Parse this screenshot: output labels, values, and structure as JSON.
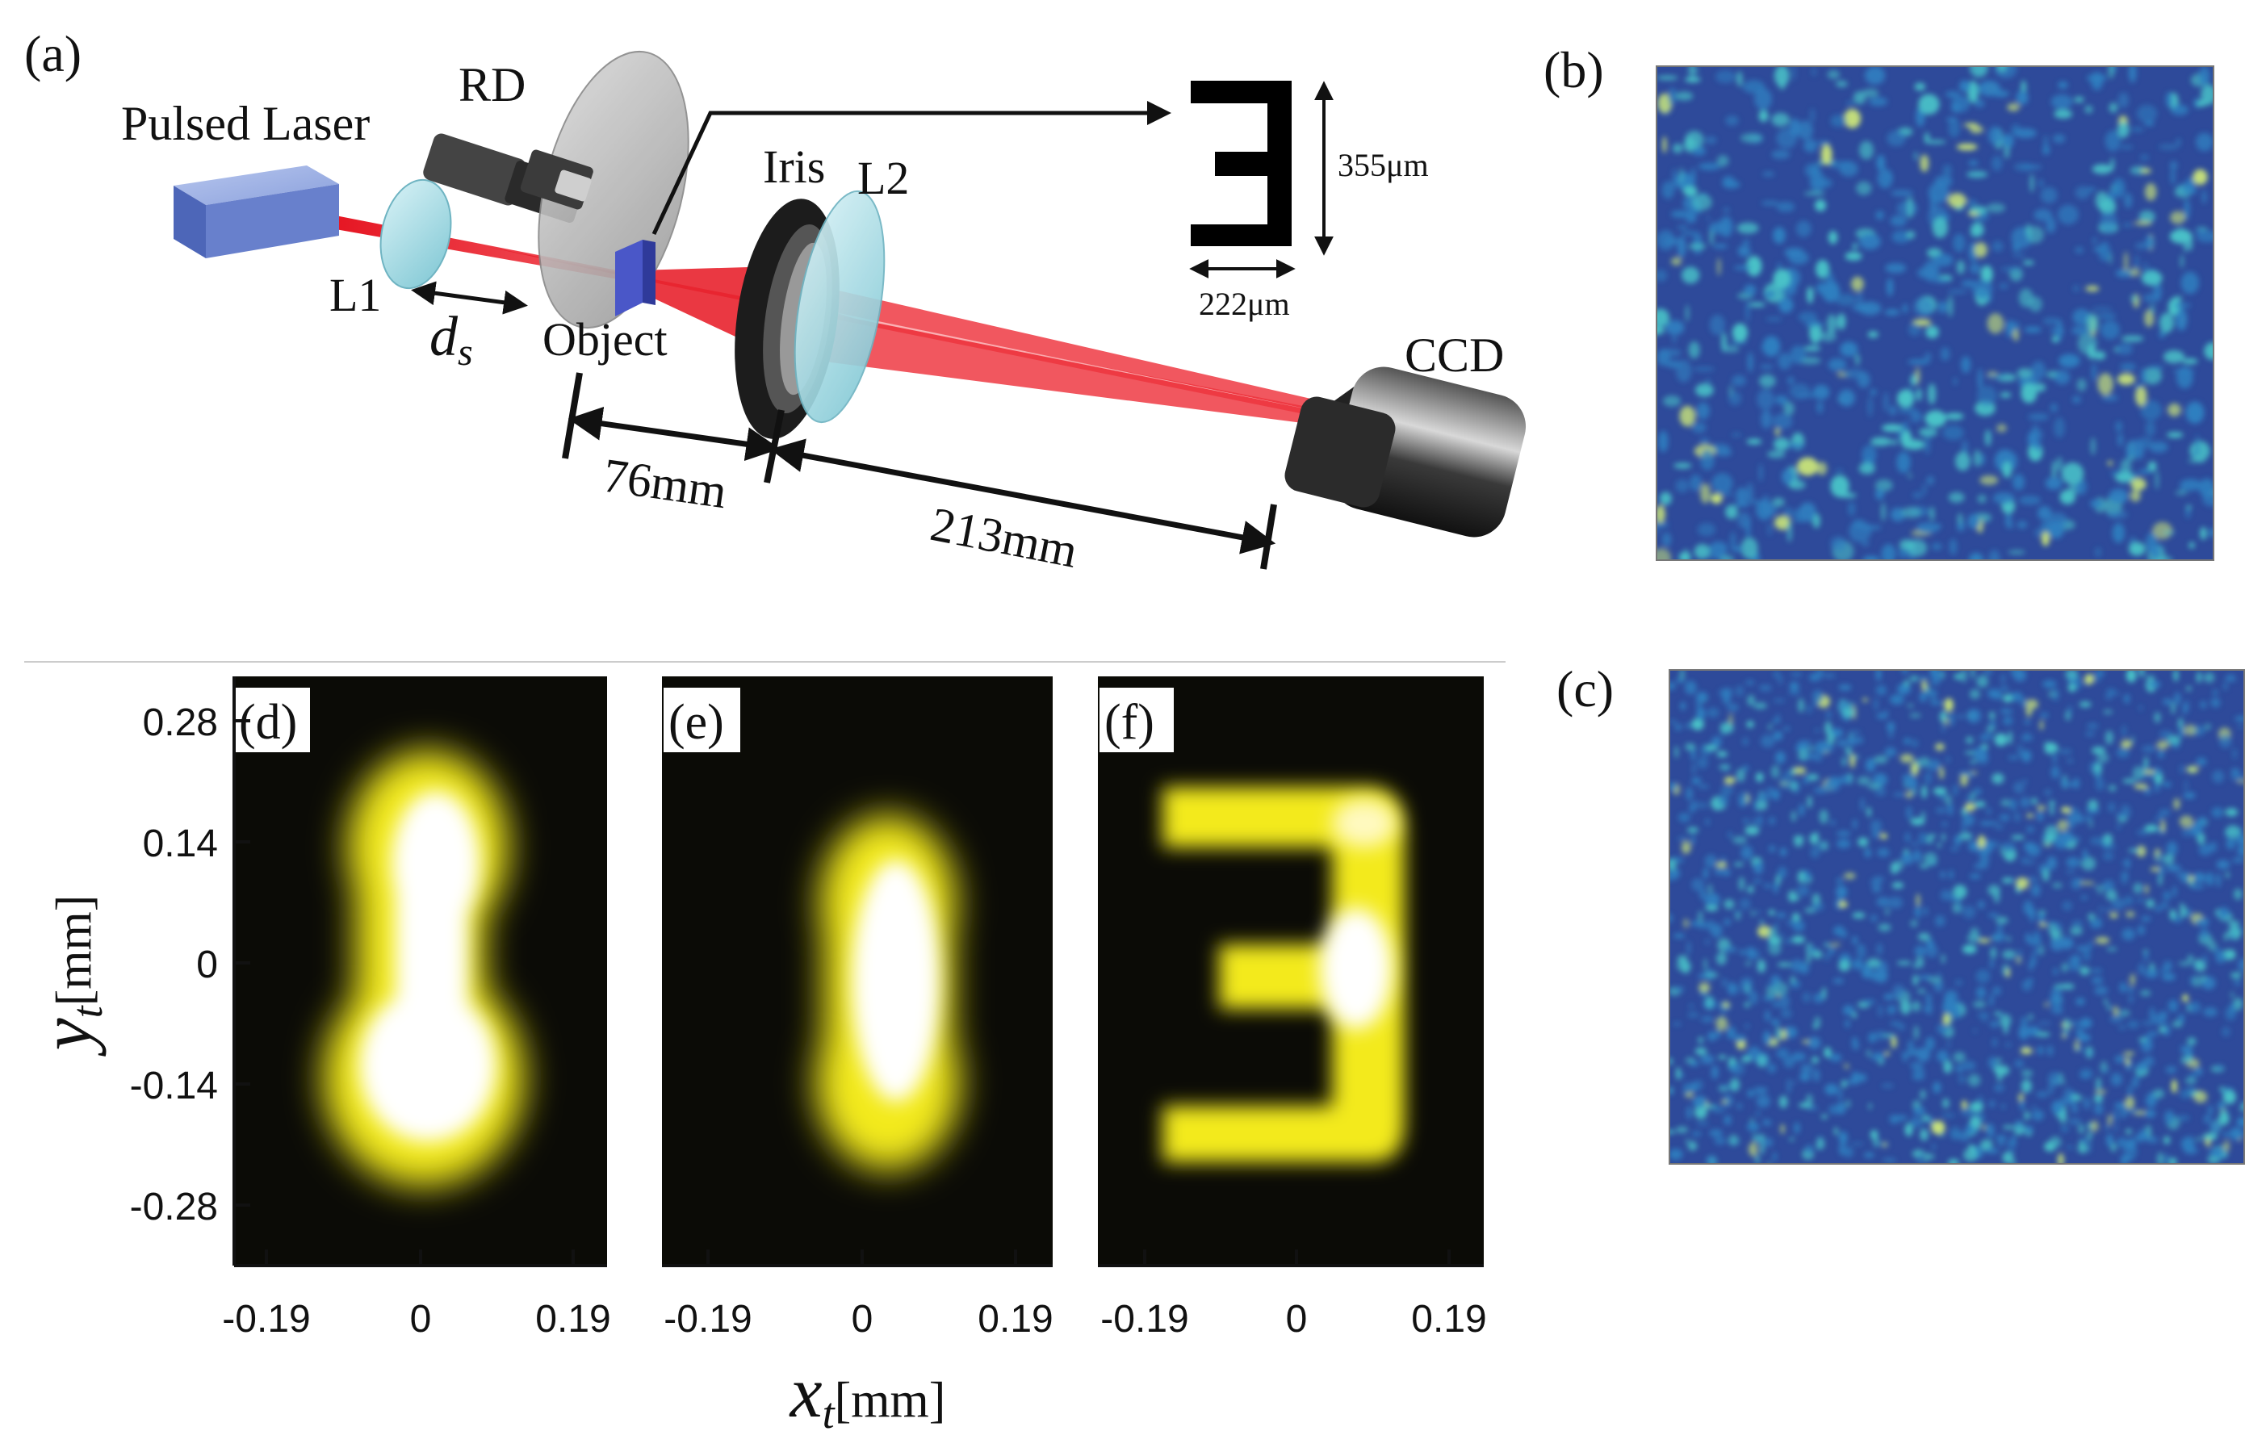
{
  "panels": {
    "a": "(a)",
    "b": "(b)",
    "c": "(c)",
    "d": "(d)",
    "e": "(e)",
    "f": "(f)"
  },
  "setup": {
    "laser": "Pulsed Laser",
    "rd": "RD",
    "l1": "L1",
    "ds_main": "d",
    "ds_sub": "s",
    "object": "Object",
    "iris": "Iris",
    "l2": "L2",
    "ccd": "CCD",
    "dim_height": "355μm",
    "dim_width": "222μm",
    "dist1": "76mm",
    "dist2": "213mm"
  },
  "images": {
    "y_label_main": "y",
    "y_label_sub": "t",
    "y_label_unit": "[mm]",
    "x_label_main": "x",
    "x_label_sub": "t",
    "x_label_unit": "[mm]",
    "y_ticks": [
      "0.28",
      "0.14",
      "0",
      "-0.14",
      "-0.28"
    ],
    "x_ticks": [
      "-0.19",
      "0",
      "0.19"
    ]
  },
  "colors": {
    "laser_box": "#7f97d6",
    "beam": "#e8222e",
    "lens": "#9ad6e0",
    "speckle_bg": "#2e4a9a",
    "image_glow": "#f2ee27"
  }
}
